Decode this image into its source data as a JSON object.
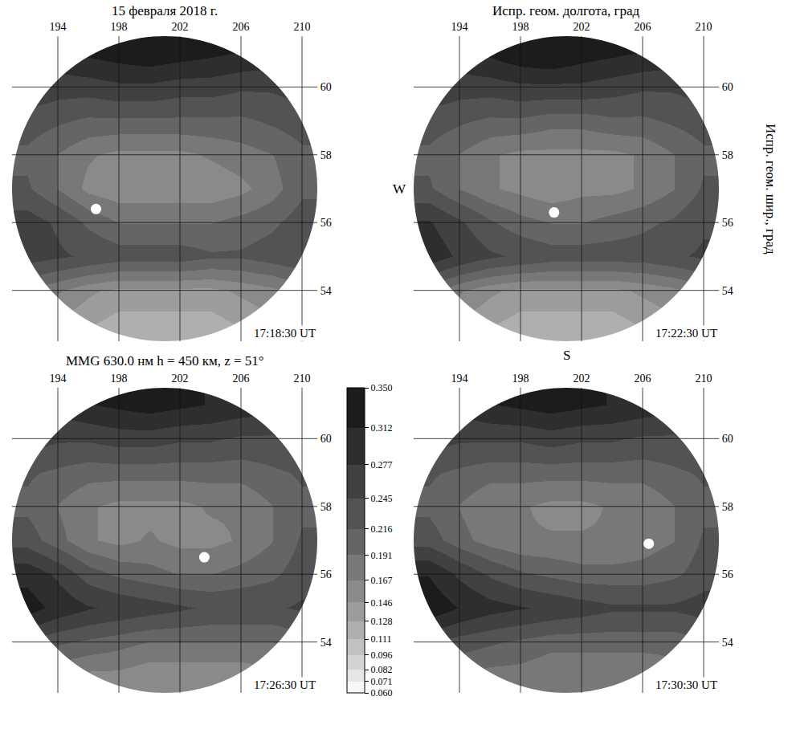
{
  "chart_data": {
    "type": "heatmap",
    "title": "15 февраля 2018 г.",
    "subtitle": "MMG 630.0 нм h = 450 км, z = 51°",
    "xlabel": "Испр. геом. долгота, град",
    "ylabel": "Испр. геом. шир., град",
    "annotations": [
      "W",
      "S"
    ],
    "xlim": [
      191,
      211
    ],
    "ylim": [
      52.5,
      61.5
    ],
    "xticks": [
      194,
      198,
      202,
      206,
      210
    ],
    "yticks": [
      54,
      56,
      58,
      60
    ],
    "grid": true,
    "x": [
      192,
      194,
      196,
      198,
      200,
      202,
      204,
      206,
      208,
      210
    ],
    "y": [
      61,
      60,
      59,
      58,
      57,
      56,
      55,
      54,
      53
    ],
    "colorbar": {
      "range": [
        0.06,
        0.35
      ],
      "ticks": [
        {
          "value": 0.06,
          "label": "0.060"
        },
        0.071,
        0.082,
        0.096,
        0.111,
        0.128,
        0.146,
        0.167,
        0.191,
        0.216,
        0.245,
        0.277,
        0.312,
        {
          "value": 0.35,
          "label": "0.350"
        }
      ]
    },
    "panels": [
      {
        "label": "17:18:30 UT",
        "point": {
          "lon": 196.5,
          "lat": 56.4
        },
        "cells": [
          [
            null,
            0.3,
            0.32,
            0.33,
            0.34,
            0.33,
            0.32,
            0.31,
            0.3,
            null
          ],
          [
            0.27,
            0.26,
            0.26,
            0.27,
            0.27,
            0.26,
            0.26,
            0.25,
            0.25,
            0.26
          ],
          [
            0.23,
            0.22,
            0.21,
            0.21,
            0.21,
            0.21,
            0.21,
            0.21,
            0.22,
            0.23
          ],
          [
            0.21,
            0.19,
            0.17,
            0.16,
            0.16,
            0.16,
            0.17,
            0.18,
            0.19,
            0.21
          ],
          [
            0.22,
            0.19,
            0.16,
            0.15,
            0.15,
            0.15,
            0.15,
            0.16,
            0.18,
            0.21
          ],
          [
            0.26,
            0.24,
            0.21,
            0.19,
            0.19,
            0.19,
            0.19,
            0.2,
            0.21,
            0.23
          ],
          [
            0.26,
            0.25,
            0.24,
            0.23,
            0.23,
            0.23,
            0.22,
            0.22,
            0.23,
            0.24
          ],
          [
            0.19,
            0.17,
            0.15,
            0.14,
            0.14,
            0.14,
            0.14,
            0.15,
            0.16,
            0.18
          ],
          [
            null,
            0.14,
            0.13,
            0.12,
            0.12,
            0.12,
            0.12,
            0.13,
            0.14,
            null
          ]
        ]
      },
      {
        "label": "17:22:30 UT",
        "point": {
          "lon": 200.2,
          "lat": 56.3
        },
        "cells": [
          [
            null,
            0.3,
            0.32,
            0.34,
            0.35,
            0.33,
            0.32,
            0.31,
            0.3,
            null
          ],
          [
            0.27,
            0.26,
            0.26,
            0.27,
            0.27,
            0.27,
            0.26,
            0.25,
            0.25,
            0.26
          ],
          [
            0.23,
            0.22,
            0.21,
            0.21,
            0.2,
            0.2,
            0.21,
            0.21,
            0.22,
            0.23
          ],
          [
            0.21,
            0.19,
            0.17,
            0.16,
            0.16,
            0.16,
            0.16,
            0.17,
            0.19,
            0.21
          ],
          [
            0.22,
            0.19,
            0.17,
            0.16,
            0.15,
            0.16,
            0.16,
            0.17,
            0.19,
            0.22
          ],
          [
            0.28,
            0.25,
            0.22,
            0.2,
            0.19,
            0.19,
            0.2,
            0.21,
            0.22,
            0.24
          ],
          [
            0.3,
            0.27,
            0.25,
            0.24,
            0.23,
            0.23,
            0.23,
            0.23,
            0.24,
            0.25
          ],
          [
            0.2,
            0.17,
            0.15,
            0.14,
            0.14,
            0.14,
            0.14,
            0.15,
            0.16,
            0.18
          ],
          [
            null,
            0.14,
            0.13,
            0.12,
            0.12,
            0.12,
            0.12,
            0.13,
            0.14,
            null
          ]
        ]
      },
      {
        "label": "17:26:30 UT",
        "point": {
          "lon": 203.6,
          "lat": 56.5
        },
        "cells": [
          [
            null,
            0.29,
            0.31,
            0.32,
            0.33,
            0.32,
            0.31,
            0.3,
            0.29,
            null
          ],
          [
            0.26,
            0.25,
            0.25,
            0.26,
            0.26,
            0.25,
            0.25,
            0.24,
            0.24,
            0.25
          ],
          [
            0.22,
            0.21,
            0.2,
            0.2,
            0.2,
            0.2,
            0.2,
            0.2,
            0.21,
            0.22
          ],
          [
            0.21,
            0.19,
            0.17,
            0.16,
            0.16,
            0.16,
            0.17,
            0.17,
            0.19,
            0.21
          ],
          [
            0.23,
            0.2,
            0.17,
            0.16,
            0.17,
            0.16,
            0.16,
            0.17,
            0.19,
            0.22
          ],
          [
            0.3,
            0.27,
            0.23,
            0.21,
            0.2,
            0.19,
            0.19,
            0.2,
            0.21,
            0.23
          ],
          [
            0.33,
            0.3,
            0.28,
            0.27,
            0.26,
            0.25,
            0.24,
            0.24,
            0.24,
            0.25
          ],
          [
            0.24,
            0.22,
            0.21,
            0.2,
            0.19,
            0.19,
            0.19,
            0.19,
            0.19,
            0.2
          ],
          [
            null,
            0.17,
            0.16,
            0.16,
            0.15,
            0.15,
            0.15,
            0.15,
            0.16,
            null
          ]
        ]
      },
      {
        "label": "17:30:30 UT",
        "point": {
          "lon": 206.4,
          "lat": 56.9
        },
        "cells": [
          [
            null,
            0.29,
            0.31,
            0.32,
            0.33,
            0.32,
            0.31,
            0.3,
            0.29,
            null
          ],
          [
            0.26,
            0.25,
            0.25,
            0.25,
            0.26,
            0.25,
            0.25,
            0.24,
            0.24,
            0.25
          ],
          [
            0.22,
            0.21,
            0.2,
            0.2,
            0.2,
            0.2,
            0.2,
            0.2,
            0.21,
            0.22
          ],
          [
            0.21,
            0.19,
            0.17,
            0.17,
            0.16,
            0.16,
            0.17,
            0.17,
            0.19,
            0.21
          ],
          [
            0.23,
            0.2,
            0.18,
            0.17,
            0.17,
            0.17,
            0.17,
            0.18,
            0.19,
            0.22
          ],
          [
            0.31,
            0.27,
            0.24,
            0.22,
            0.21,
            0.2,
            0.2,
            0.2,
            0.21,
            0.23
          ],
          [
            0.34,
            0.31,
            0.29,
            0.28,
            0.27,
            0.26,
            0.25,
            0.25,
            0.25,
            0.26
          ],
          [
            0.25,
            0.23,
            0.22,
            0.21,
            0.2,
            0.2,
            0.2,
            0.2,
            0.2,
            0.21
          ],
          [
            null,
            0.19,
            0.18,
            0.18,
            0.17,
            0.17,
            0.17,
            0.17,
            0.18,
            null
          ]
        ]
      }
    ]
  }
}
